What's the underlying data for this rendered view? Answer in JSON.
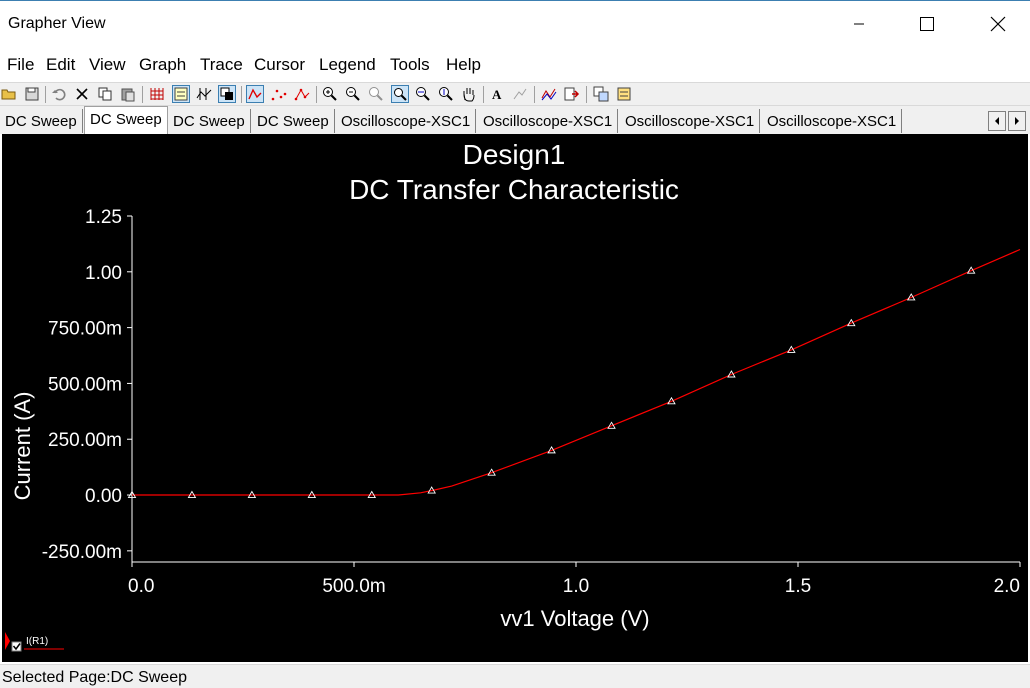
{
  "window": {
    "title": "Grapher View"
  },
  "menu": [
    "File",
    "Edit",
    "View",
    "Graph",
    "Trace",
    "Cursor",
    "Legend",
    "Tools",
    "Help"
  ],
  "toolbar": {
    "icons": [
      "open-icon",
      "save-icon",
      "undo-icon",
      "delete-icon",
      "copy-icon",
      "paste-icon",
      "grid-icon",
      "legend-icon",
      "cursors-icon",
      "reverse-colors-icon",
      "show-lines-icon",
      "show-points-icon",
      "show-lines-points-icon",
      "zoom-in-icon",
      "zoom-out-icon",
      "zoom-area-icon",
      "zoom-full-icon",
      "zoom-x-icon",
      "zoom-y-icon",
      "pan-icon",
      "text-icon",
      "label-icon",
      "add-trace-icon",
      "export-icon",
      "overlay-icon",
      "properties-icon"
    ]
  },
  "tabs": [
    "DC Sweep",
    "DC Sweep",
    "DC Sweep",
    "DC Sweep",
    "Oscilloscope-XSC1",
    "Oscilloscope-XSC1",
    "Oscilloscope-XSC1",
    "Oscilloscope-XSC1"
  ],
  "active_tab_index": 1,
  "legend": {
    "label": "I(R1)",
    "checked": true,
    "color": "#ff0000"
  },
  "status": {
    "text": "Selected Page:DC Sweep"
  },
  "colors": {
    "trace": "#ff0000",
    "background": "#000000",
    "axes": "#ffffff"
  },
  "chart_data": {
    "type": "line",
    "title": "Design1",
    "subtitle": "DC Transfer Characteristic",
    "xlabel": "vv1 Voltage (V)",
    "ylabel": "Current (A)",
    "xlim": [
      0.0,
      2.0
    ],
    "ylim": [
      -0.3,
      1.25
    ],
    "x_ticks": [
      {
        "value": 0.0,
        "label": "0.0"
      },
      {
        "value": 0.5,
        "label": "500.0m"
      },
      {
        "value": 1.0,
        "label": "1.0"
      },
      {
        "value": 1.5,
        "label": "1.5"
      },
      {
        "value": 2.0,
        "label": "2.0"
      }
    ],
    "y_ticks": [
      {
        "value": 1.25,
        "label": "1.25"
      },
      {
        "value": 1.0,
        "label": "1.00"
      },
      {
        "value": 0.75,
        "label": "750.00m"
      },
      {
        "value": 0.5,
        "label": "500.00m"
      },
      {
        "value": 0.25,
        "label": "250.00m"
      },
      {
        "value": 0.0,
        "label": "0.00"
      },
      {
        "value": -0.25,
        "label": "-250.00m"
      }
    ],
    "grid": false,
    "series": [
      {
        "name": "I(R1)",
        "color": "#ff0000",
        "x": [
          0.0,
          0.135,
          0.27,
          0.405,
          0.54,
          0.6,
          0.65,
          0.68,
          0.72,
          0.81,
          0.945,
          1.08,
          1.215,
          1.35,
          1.485,
          1.62,
          1.755,
          1.89,
          2.0
        ],
        "y": [
          0.0,
          0.0,
          0.0,
          0.0,
          0.0,
          0.0,
          0.01,
          0.022,
          0.04,
          0.1,
          0.2,
          0.31,
          0.42,
          0.54,
          0.65,
          0.77,
          0.885,
          1.005,
          1.1
        ],
        "markers_x": [
          0.0,
          0.135,
          0.27,
          0.405,
          0.54,
          0.675,
          0.81,
          0.945,
          1.08,
          1.215,
          1.35,
          1.485,
          1.62,
          1.755,
          1.89
        ],
        "markers_y": [
          0.0,
          0.0,
          0.0,
          0.0,
          0.0,
          0.02,
          0.1,
          0.2,
          0.31,
          0.42,
          0.54,
          0.65,
          0.77,
          0.885,
          1.005
        ]
      }
    ]
  }
}
